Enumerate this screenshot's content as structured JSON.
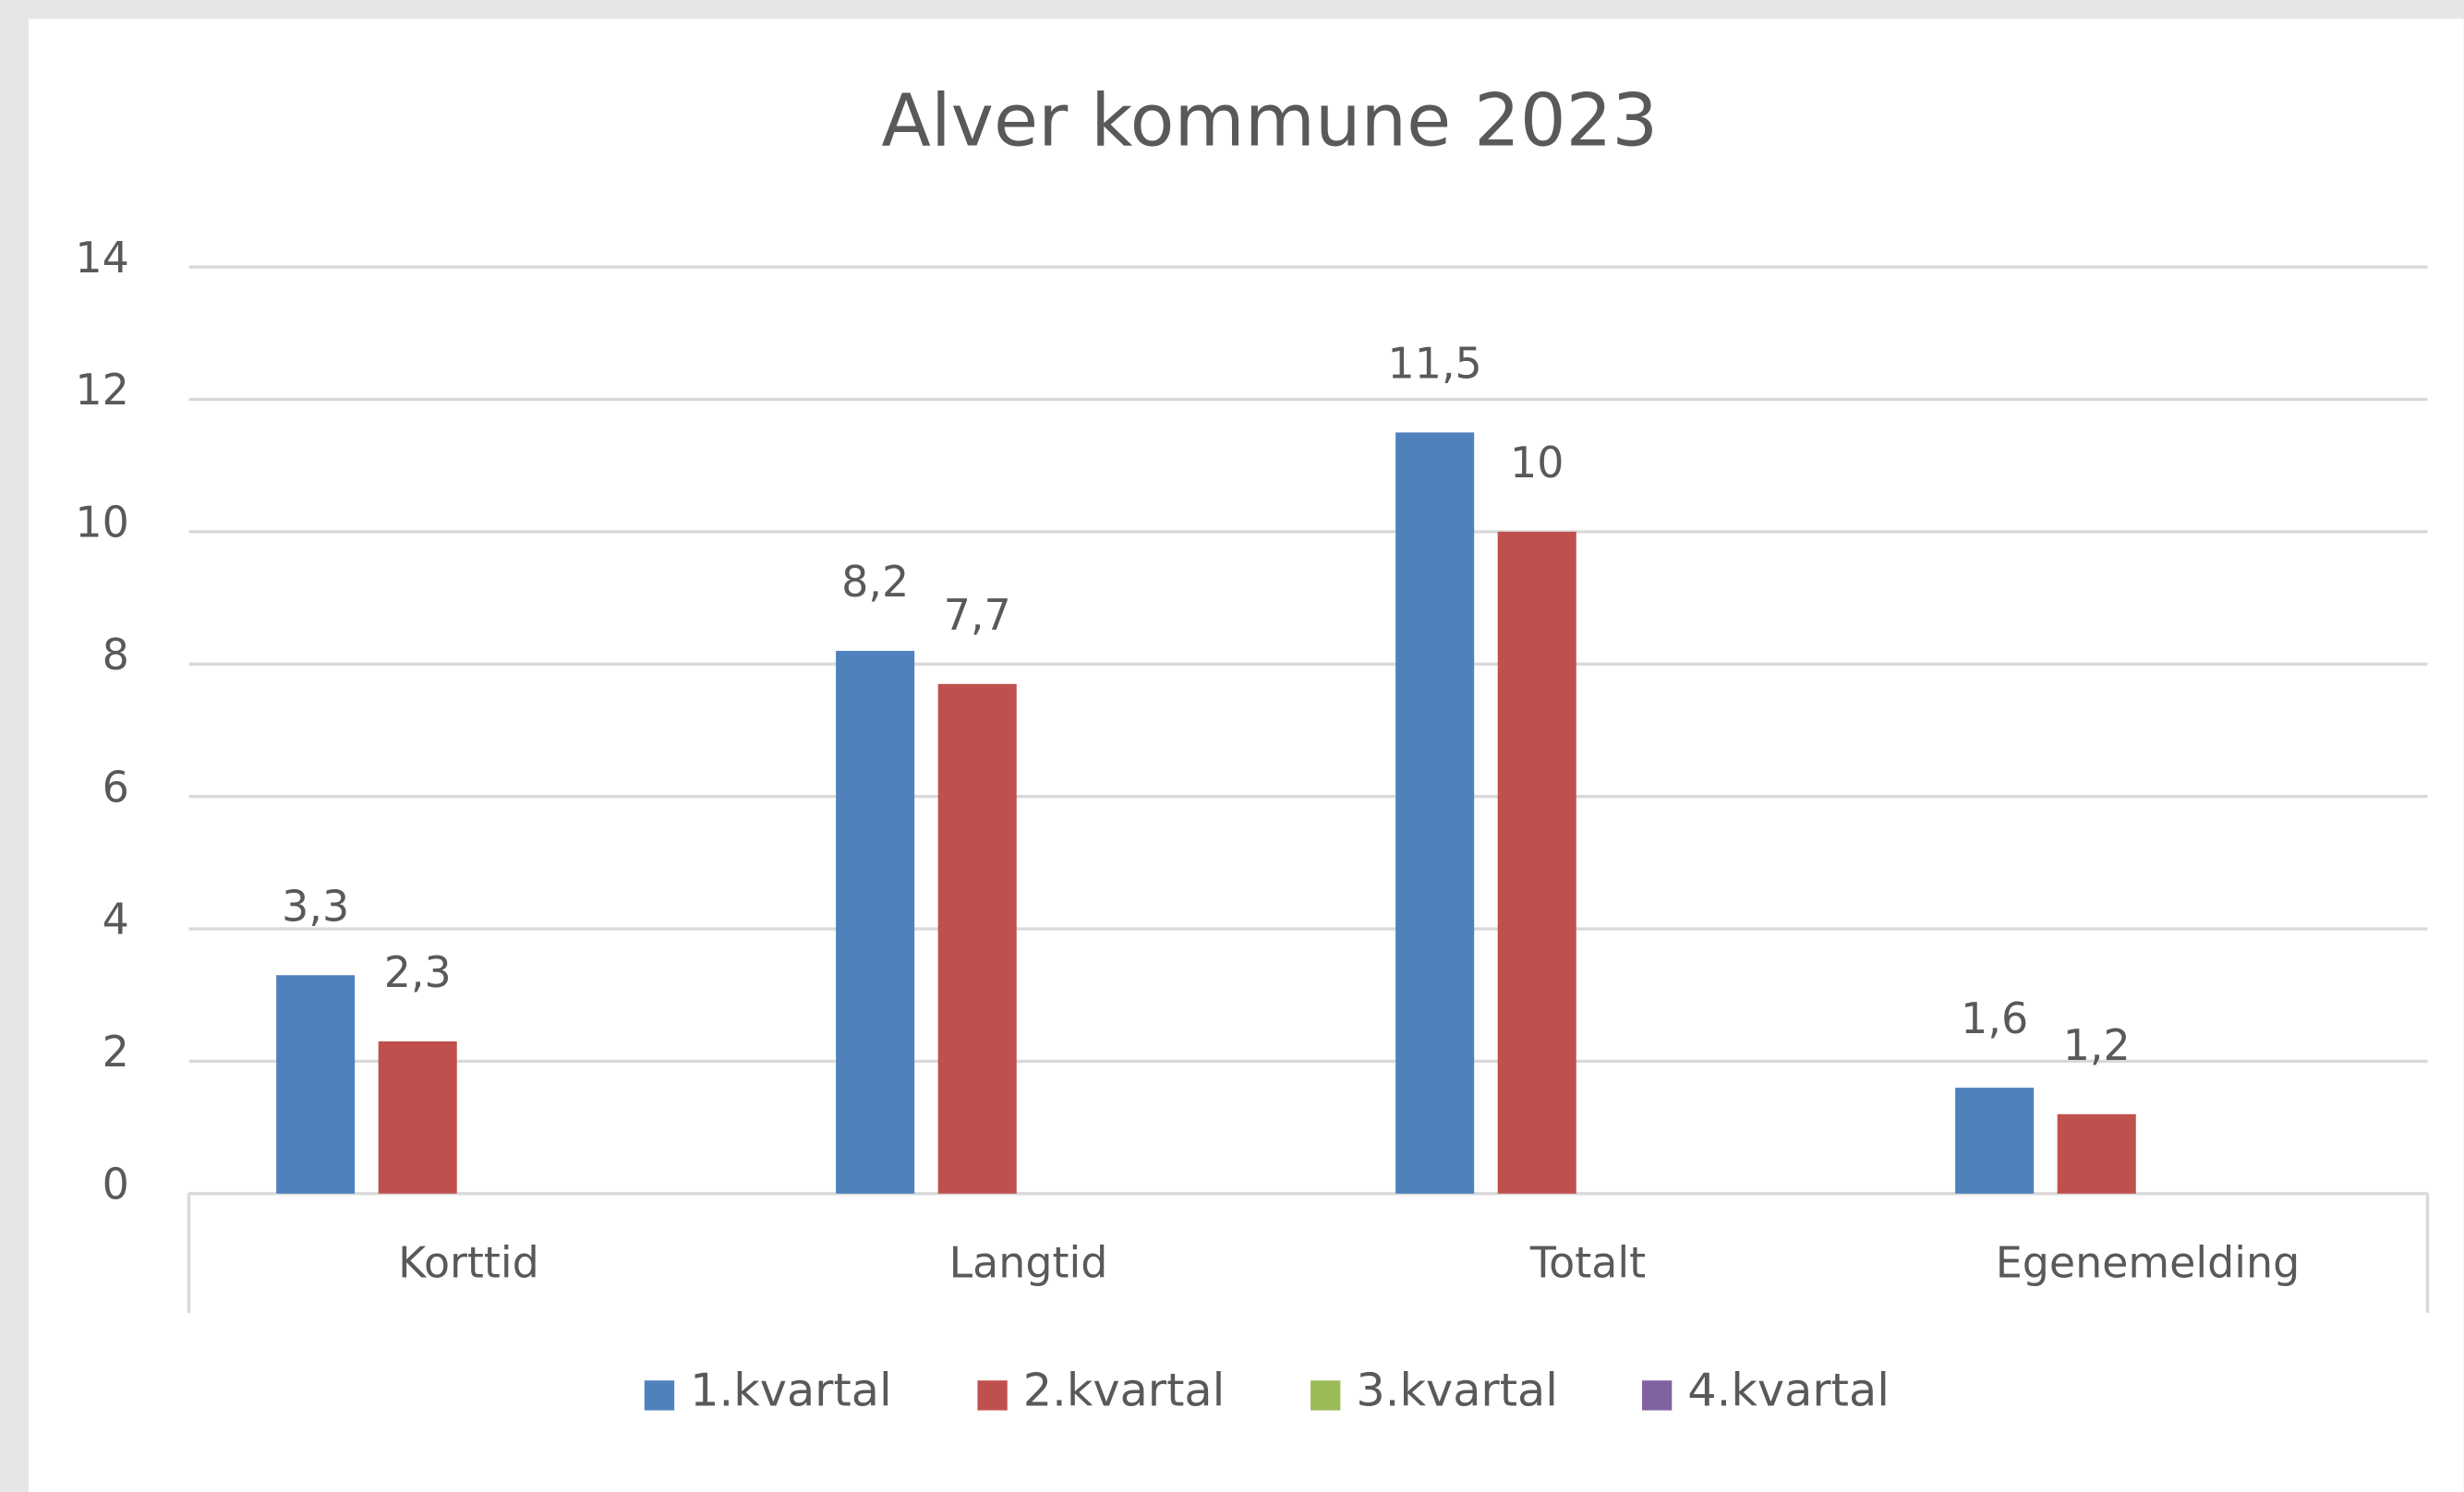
{
  "chart_data": {
    "type": "bar",
    "title": "Alver kommune 2023",
    "categories": [
      "Korttid",
      "Langtid",
      "Totalt",
      "Egenemelding"
    ],
    "series": [
      {
        "name": "1.kvartal",
        "color": "#4f81bd",
        "values": [
          3.3,
          8.2,
          11.5,
          1.6
        ],
        "value_labels": [
          "3,3",
          "8,2",
          "11,5",
          "1,6"
        ]
      },
      {
        "name": "2.kvartal",
        "color": "#c0504d",
        "values": [
          2.3,
          7.7,
          10,
          1.2
        ],
        "value_labels": [
          "2,3",
          "7,7",
          "10",
          "1,2"
        ]
      },
      {
        "name": "3.kvartal",
        "color": "#9bbb59",
        "values": [
          null,
          null,
          null,
          null
        ]
      },
      {
        "name": "4.kvartal",
        "color": "#8064a2",
        "values": [
          null,
          null,
          null,
          null
        ]
      }
    ],
    "ylim": [
      0,
      14
    ],
    "yticks": [
      0,
      2,
      4,
      6,
      8,
      10,
      12,
      14
    ],
    "grid": true,
    "legend": "bottom"
  }
}
